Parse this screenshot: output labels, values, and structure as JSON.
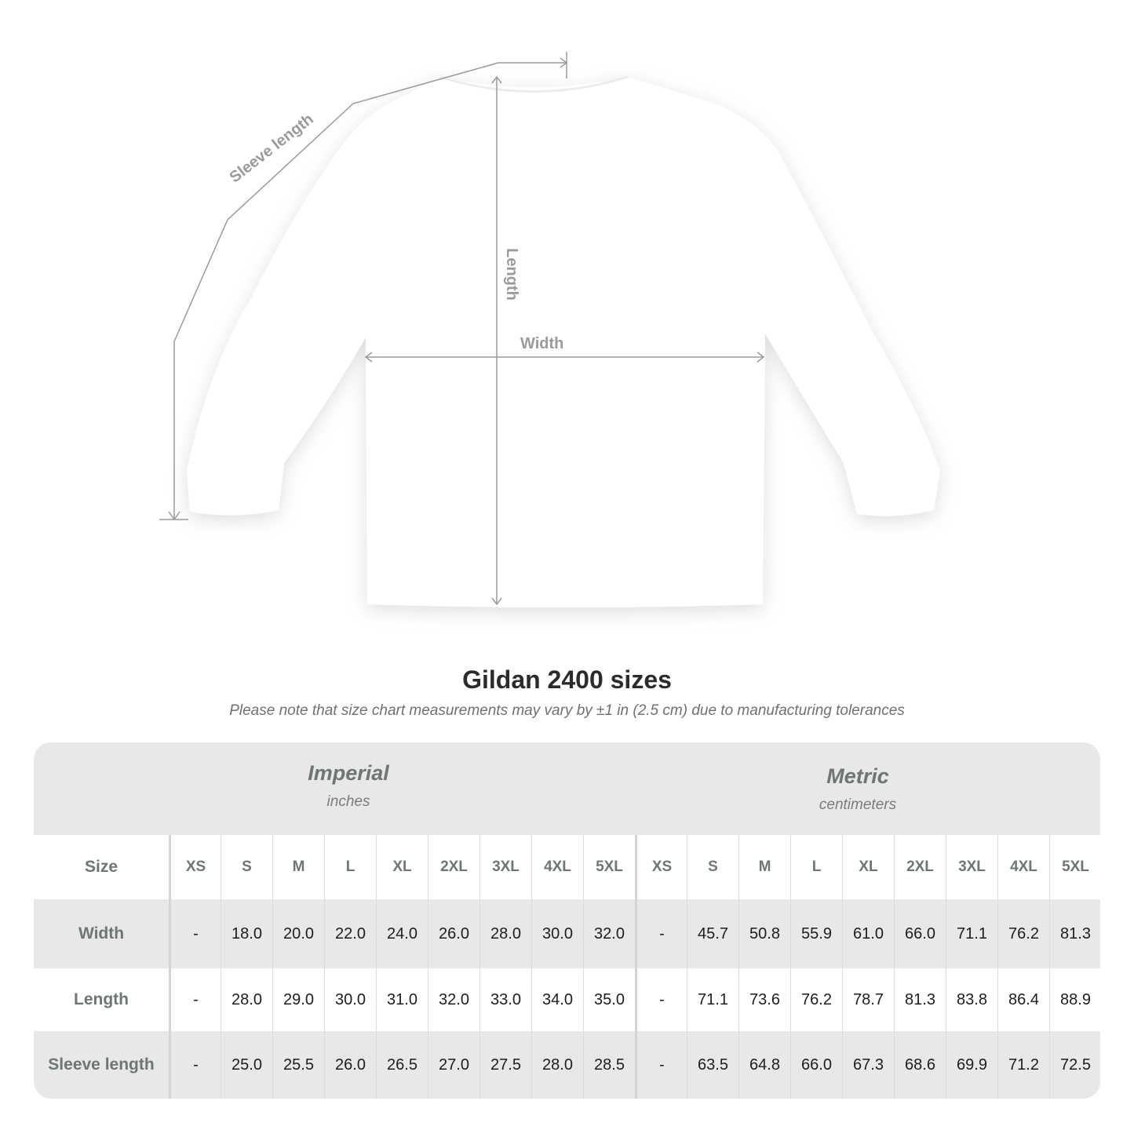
{
  "illustration": {
    "labels": {
      "sleeve_length": "Sleeve length",
      "length": "Length",
      "width": "Width"
    },
    "line_color": "#999999",
    "garment_color": "#ffffff"
  },
  "title": "Gildan 2400 sizes",
  "note": "Please note that size chart measurements may vary by ±1 in (2.5 cm) due to manufacturing tolerances",
  "table": {
    "imperial": {
      "name": "Imperial",
      "unit": "inches"
    },
    "metric": {
      "name": "Metric",
      "unit": "centimeters"
    },
    "size_label": "Size",
    "sizes": [
      "XS",
      "S",
      "M",
      "L",
      "XL",
      "2XL",
      "3XL",
      "4XL",
      "5XL"
    ],
    "rows": [
      {
        "label": "Width",
        "imperial": [
          "-",
          "18.0",
          "20.0",
          "22.0",
          "24.0",
          "26.0",
          "28.0",
          "30.0",
          "32.0"
        ],
        "metric": [
          "-",
          "45.7",
          "50.8",
          "55.9",
          "61.0",
          "66.0",
          "71.1",
          "76.2",
          "81.3"
        ]
      },
      {
        "label": "Length",
        "imperial": [
          "-",
          "28.0",
          "29.0",
          "30.0",
          "31.0",
          "32.0",
          "33.0",
          "34.0",
          "35.0"
        ],
        "metric": [
          "-",
          "71.1",
          "73.6",
          "76.2",
          "78.7",
          "81.3",
          "83.8",
          "86.4",
          "88.9"
        ]
      },
      {
        "label": "Sleeve length",
        "imperial": [
          "-",
          "25.0",
          "25.5",
          "26.0",
          "26.5",
          "27.0",
          "27.5",
          "28.0",
          "28.5"
        ],
        "metric": [
          "-",
          "63.5",
          "64.8",
          "66.0",
          "67.3",
          "68.6",
          "69.9",
          "71.2",
          "72.5"
        ]
      }
    ]
  }
}
